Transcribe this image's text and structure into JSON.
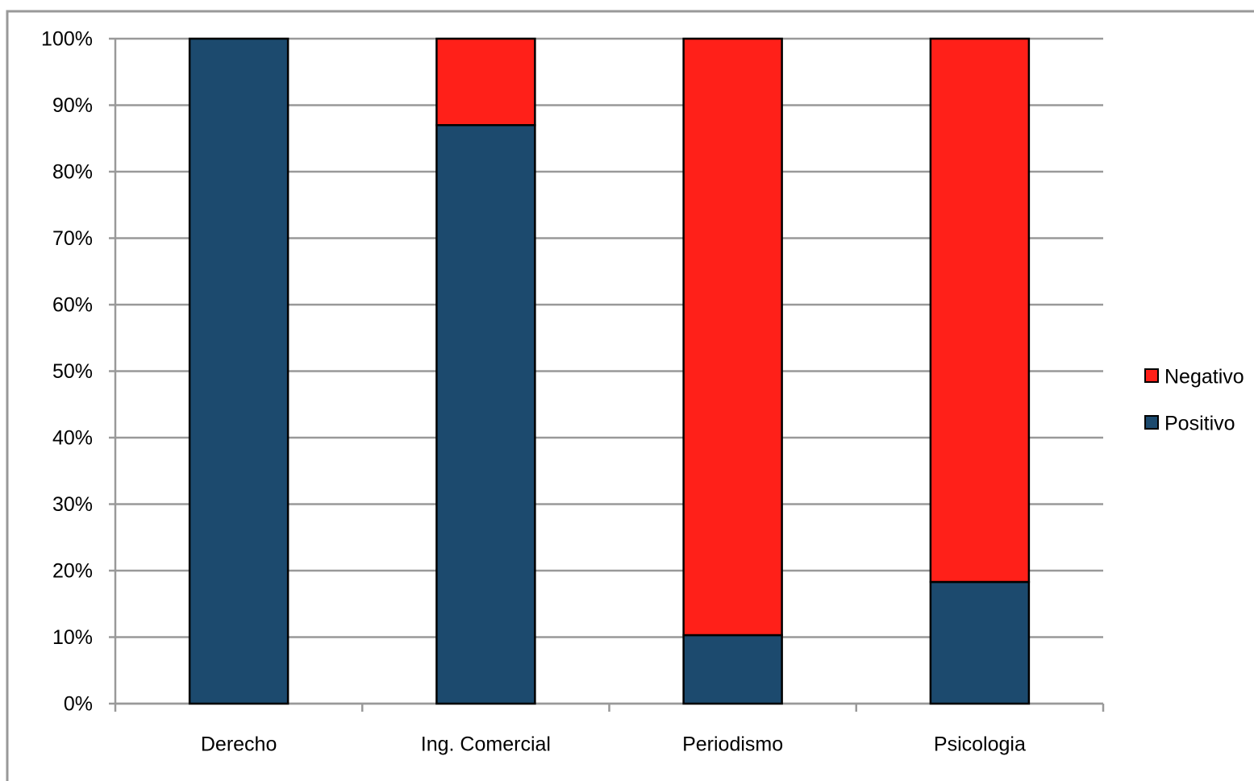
{
  "chart_data": {
    "type": "stacked_bar",
    "categories": [
      "Derecho",
      "Ing. Comercial",
      "Periodismo",
      "Psicologia"
    ],
    "series": [
      {
        "name": "Positivo",
        "color": "#1c4a6e",
        "values": [
          100,
          87,
          10.3,
          18.3
        ]
      },
      {
        "name": "Negativo",
        "color": "#ff2019",
        "values": [
          0,
          13,
          89.7,
          81.7
        ]
      }
    ],
    "ylim": [
      0,
      100
    ],
    "yticks": [
      {
        "value": 0,
        "label": "0%"
      },
      {
        "value": 10,
        "label": "10%"
      },
      {
        "value": 20,
        "label": "20%"
      },
      {
        "value": 30,
        "label": "30%"
      },
      {
        "value": 40,
        "label": "40%"
      },
      {
        "value": 50,
        "label": "50%"
      },
      {
        "value": 60,
        "label": "60%"
      },
      {
        "value": 70,
        "label": "70%"
      },
      {
        "value": 80,
        "label": "80%"
      },
      {
        "value": 90,
        "label": "90%"
      },
      {
        "value": 100,
        "label": "100%"
      }
    ],
    "grid": true,
    "legend": "right"
  }
}
